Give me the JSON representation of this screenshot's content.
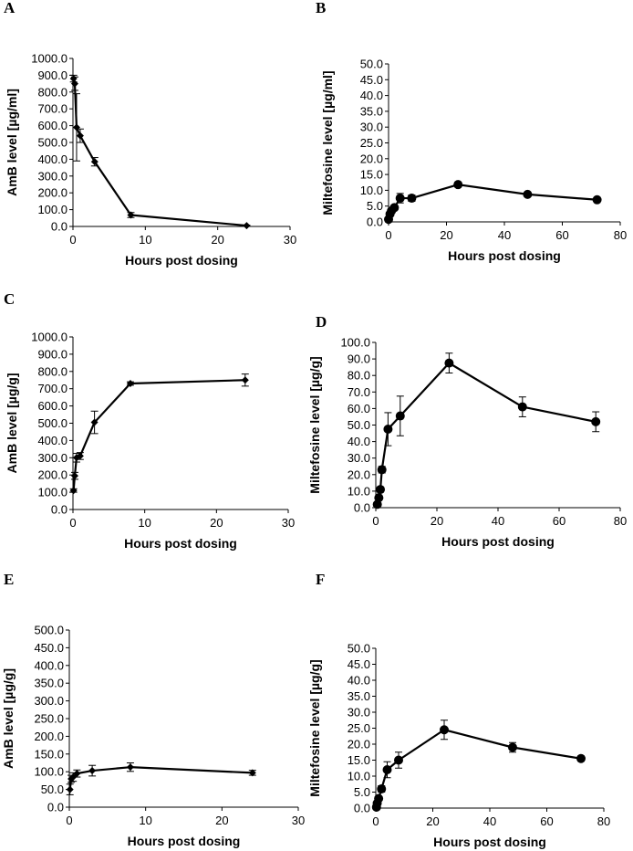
{
  "chart_data": [
    {
      "panel": "A",
      "type": "line",
      "marker": "diamond",
      "xlabel": "Hours post dosing",
      "ylabel": "AmB level [µg/ml]",
      "xlim": [
        0,
        30
      ],
      "xticks": [
        0,
        10,
        20,
        30
      ],
      "ylim": [
        0,
        1000
      ],
      "yticks": [
        "0.0",
        "100.0",
        "200.0",
        "300.0",
        "400.0",
        "500.0",
        "600.0",
        "700.0",
        "800.0",
        "900.0",
        "1000.0"
      ],
      "series": [
        {
          "name": "AmB",
          "x": [
            0.083,
            0.25,
            0.5,
            1,
            3,
            8,
            24
          ],
          "y": [
            880,
            850,
            590,
            540,
            385,
            68,
            5
          ],
          "err": [
            20,
            40,
            200,
            40,
            25,
            15,
            3
          ]
        }
      ]
    },
    {
      "panel": "B",
      "type": "line",
      "marker": "circle",
      "xlabel": "Hours post dosing",
      "ylabel": "Miltefosine level [µg/ml]",
      "xlim": [
        0,
        80
      ],
      "xticks": [
        0,
        20,
        40,
        60,
        80
      ],
      "ylim": [
        0,
        50
      ],
      "yticks": [
        "0.0",
        "5.0",
        "10.0",
        "15.0",
        "20.0",
        "25.0",
        "30.0",
        "35.0",
        "40.0",
        "45.0",
        "50.0"
      ],
      "series": [
        {
          "name": "Miltefosine",
          "x": [
            0,
            0.5,
            1,
            2,
            4,
            8,
            24,
            48,
            72
          ],
          "y": [
            0.8,
            2.5,
            3.5,
            4.5,
            7.5,
            7.5,
            11.8,
            8.7,
            7.0
          ],
          "err": [
            0.3,
            0.5,
            0.6,
            0.7,
            1.5,
            1.0,
            0.7,
            0.6,
            0.5
          ]
        }
      ]
    },
    {
      "panel": "C",
      "type": "line",
      "marker": "diamond",
      "xlabel": "Hours post dosing",
      "ylabel": "AmB level [µg/g]",
      "xlim": [
        0,
        30
      ],
      "xticks": [
        0,
        10,
        20,
        30
      ],
      "ylim": [
        0,
        1000
      ],
      "yticks": [
        "0.0",
        "100.0",
        "200.0",
        "300.0",
        "400.0",
        "500.0",
        "600.0",
        "700.0",
        "800.0",
        "900.0",
        "1000.0"
      ],
      "series": [
        {
          "name": "AmB",
          "x": [
            0.083,
            0.25,
            0.5,
            1,
            3,
            8,
            24
          ],
          "y": [
            110,
            195,
            300,
            310,
            505,
            730,
            750
          ],
          "err": [
            10,
            20,
            25,
            20,
            65,
            10,
            35
          ]
        }
      ]
    },
    {
      "panel": "D",
      "type": "line",
      "marker": "circle",
      "xlabel": "Hours post dosing",
      "ylabel": "Miltefosine level [µg/g]",
      "xlim": [
        0,
        80
      ],
      "xticks": [
        0,
        20,
        40,
        60,
        80
      ],
      "ylim": [
        0,
        100
      ],
      "yticks": [
        "0.0",
        "10.0",
        "20.0",
        "30.0",
        "40.0",
        "50.0",
        "60.0",
        "70.0",
        "80.0",
        "90.0",
        "100.0"
      ],
      "series": [
        {
          "name": "Miltefosine",
          "x": [
            0.5,
            1,
            1.5,
            2,
            4,
            8,
            24,
            48,
            72
          ],
          "y": [
            2,
            6,
            11,
            23,
            47.5,
            55.5,
            87.5,
            61,
            52
          ],
          "err": [
            0.5,
            1,
            1.5,
            2,
            10,
            12,
            6,
            6,
            6
          ]
        }
      ]
    },
    {
      "panel": "E",
      "type": "line",
      "marker": "diamond",
      "xlabel": "Hours post dosing",
      "ylabel": "AmB level [µg/g]",
      "xlim": [
        0,
        30
      ],
      "xticks": [
        0,
        10,
        20,
        30
      ],
      "ylim": [
        0,
        500
      ],
      "yticks": [
        "0.0",
        "50.0",
        "100.0",
        "150.0",
        "200.0",
        "250.0",
        "300.0",
        "350.0",
        "400.0",
        "450.0",
        "500.0"
      ],
      "series": [
        {
          "name": "AmB",
          "x": [
            0.083,
            0.25,
            0.5,
            1,
            3,
            8,
            24
          ],
          "y": [
            50,
            80,
            85,
            95,
            103,
            113,
            97
          ],
          "err": [
            15,
            10,
            12,
            10,
            15,
            12,
            7
          ]
        }
      ]
    },
    {
      "panel": "F",
      "type": "line",
      "marker": "circle",
      "xlabel": "Hours post dosing",
      "ylabel": "Miltefosine level [µg/g]",
      "xlim": [
        0,
        80
      ],
      "xticks": [
        0,
        20,
        40,
        60,
        80
      ],
      "ylim": [
        0,
        50
      ],
      "yticks": [
        "0.0",
        "5.0",
        "10.0",
        "15.0",
        "20.0",
        "25.0",
        "30.0",
        "35.0",
        "40.0",
        "45.0",
        "50.0"
      ],
      "series": [
        {
          "name": "Miltefosine",
          "x": [
            0.25,
            0.5,
            1,
            2,
            4,
            8,
            24,
            48,
            72
          ],
          "y": [
            0.3,
            1.5,
            3,
            6,
            12,
            15,
            24.5,
            19,
            15.5
          ],
          "err": [
            0.2,
            0.5,
            0.5,
            1,
            2.5,
            2.5,
            3,
            1.5,
            0.8
          ]
        }
      ]
    }
  ]
}
